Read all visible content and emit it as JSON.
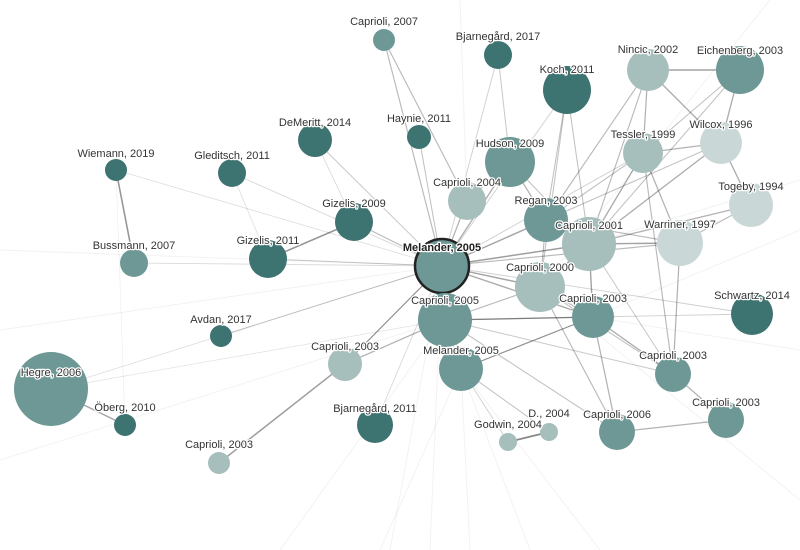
{
  "graph": {
    "selected_node": "n10",
    "colors": {
      "dark": "#3d7370",
      "medium": "#6e9895",
      "light": "#a6bfbd",
      "pale": "#c9d8d7",
      "selected_ring": "#222222"
    },
    "nodes": [
      {
        "id": "n1",
        "label": "Caprioli, 2007"
      },
      {
        "id": "n2",
        "label": "Bjarnegård, 2017"
      },
      {
        "id": "n3",
        "label": "Nincic, 2002"
      },
      {
        "id": "n4",
        "label": "Eichenberg, 2003"
      },
      {
        "id": "n5",
        "label": "Koch, 2011"
      },
      {
        "id": "n6",
        "label": "DeMeritt, 2014"
      },
      {
        "id": "n7",
        "label": "Haynie, 2011"
      },
      {
        "id": "n8",
        "label": "Hudson, 2009"
      },
      {
        "id": "n9",
        "label": "Tessler, 1999"
      },
      {
        "id": "n10",
        "label": "Melander, 2005"
      },
      {
        "id": "n11",
        "label": "Wilcox, 1996"
      },
      {
        "id": "n12",
        "label": "Wiemann, 2019"
      },
      {
        "id": "n13",
        "label": "Gleditsch, 2011"
      },
      {
        "id": "n14",
        "label": "Caprioli, 2004"
      },
      {
        "id": "n15",
        "label": "Togeby, 1994"
      },
      {
        "id": "n16",
        "label": "Gizelis, 2009"
      },
      {
        "id": "n17",
        "label": "Regan, 2003"
      },
      {
        "id": "n18",
        "label": "Caprioli, 2001"
      },
      {
        "id": "n19",
        "label": "Warriner, 1997"
      },
      {
        "id": "n20",
        "label": "Bussmann, 2007"
      },
      {
        "id": "n21",
        "label": "Gizelis, 2011"
      },
      {
        "id": "n22",
        "label": "Caprioli, 2000"
      },
      {
        "id": "n23",
        "label": "Caprioli, 2005"
      },
      {
        "id": "n24",
        "label": "Caprioli, 2003"
      },
      {
        "id": "n25",
        "label": "Schwartz, 2014"
      },
      {
        "id": "n26",
        "label": "Avdan, 2017"
      },
      {
        "id": "n27",
        "label": "Caprioli, 2003"
      },
      {
        "id": "n28",
        "label": "Melander, 2005"
      },
      {
        "id": "n29",
        "label": "Caprioli, 2003"
      },
      {
        "id": "n30",
        "label": "Hegre, 2006"
      },
      {
        "id": "n31",
        "label": "Öberg, 2010"
      },
      {
        "id": "n32",
        "label": "Bjarnegård, 2011"
      },
      {
        "id": "n33",
        "label": "D., 2004"
      },
      {
        "id": "n34",
        "label": "Godwin, 2004"
      },
      {
        "id": "n35",
        "label": "Caprioli, 2006"
      },
      {
        "id": "n36",
        "label": "Caprioli, 2003"
      },
      {
        "id": "n37",
        "label": "Caprioli, 2003"
      }
    ]
  }
}
